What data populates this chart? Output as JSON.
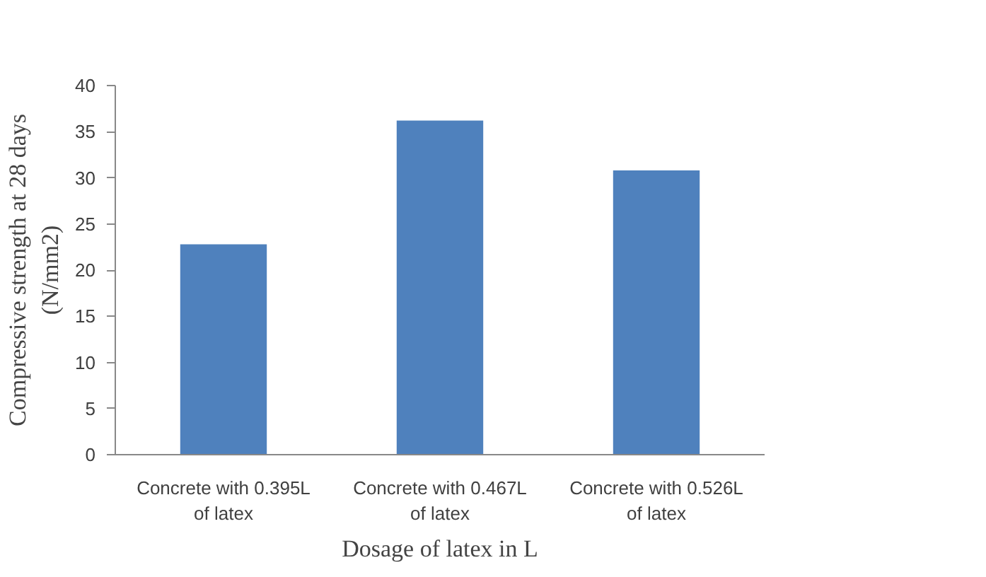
{
  "chart_data": {
    "type": "bar",
    "xlabel": "Dosage of latex in L",
    "ylabel": "Compressive strength at 28 days (N/mm2)",
    "categories": [
      "Concrete with 0.395L of latex",
      "Concrete with 0.467L of latex",
      "Concrete with 0.526L of latex"
    ],
    "values": [
      22.8,
      36.2,
      30.8
    ],
    "color": "#4f81bd",
    "ylim": [
      0,
      40
    ],
    "yticks": [
      0,
      5,
      10,
      15,
      20,
      25,
      30,
      35,
      40
    ],
    "grid": false
  }
}
